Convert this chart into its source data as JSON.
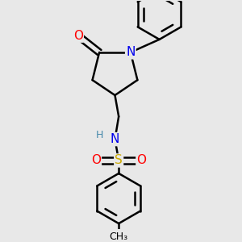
{
  "bg_color": "#e8e8e8",
  "atom_colors": {
    "C": "#000000",
    "N": "#0000ee",
    "O": "#ff0000",
    "S": "#ccaa00",
    "H": "#4488aa"
  },
  "bond_color": "#000000",
  "bond_width": 1.8,
  "font_size_atom": 11,
  "font_size_small": 9,
  "font_size_ch3": 9
}
